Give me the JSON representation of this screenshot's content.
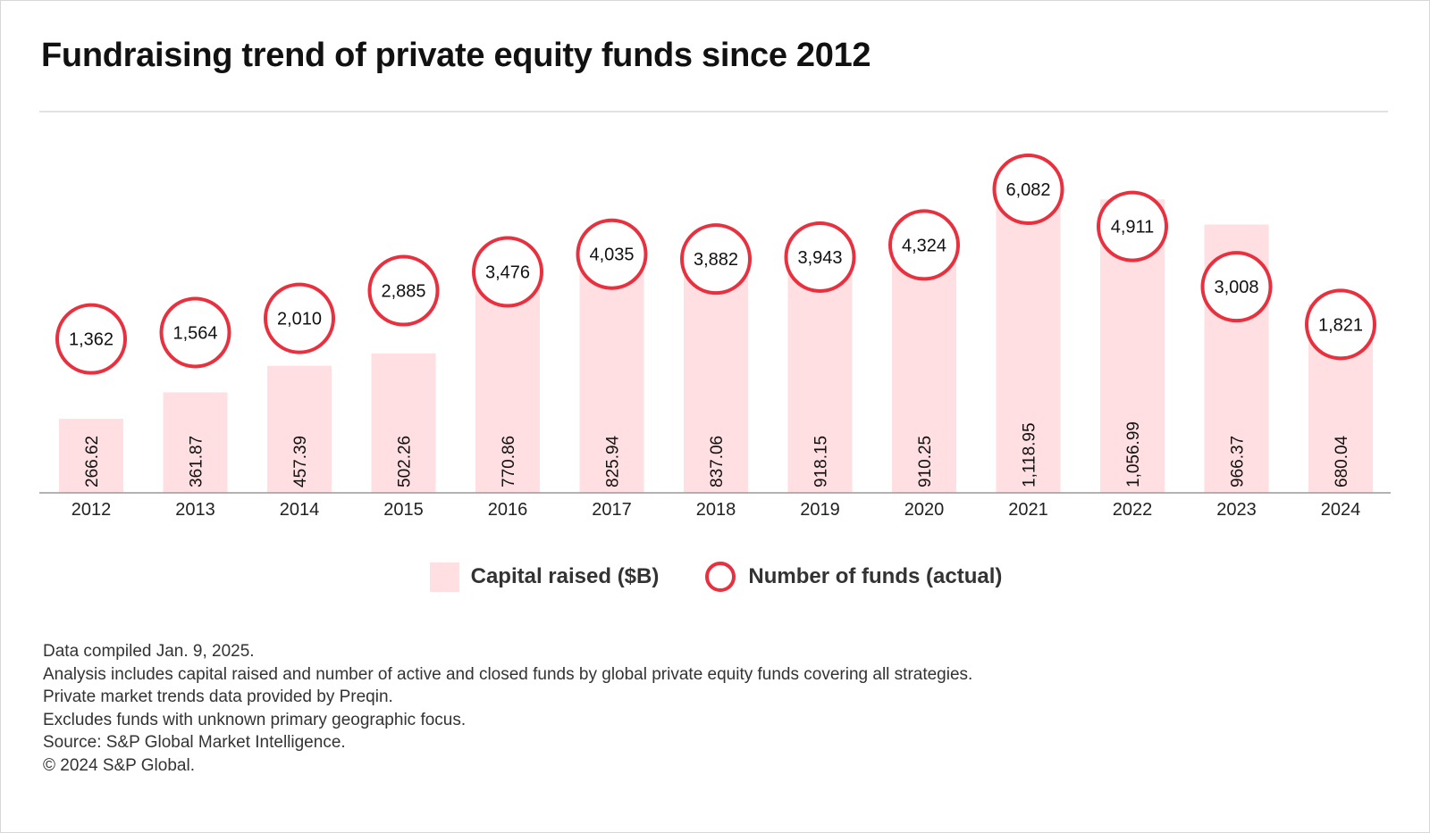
{
  "title": "Fundraising trend of private equity funds since 2012",
  "colors": {
    "bar": "#ffdfe1",
    "circle_stroke": "#e8303e",
    "text": "#111111",
    "axis": "#9a9a9a"
  },
  "legend": {
    "bar_label": "Capital raised ($B)",
    "circle_label": "Number of funds (actual)"
  },
  "notes": [
    "Data compiled Jan. 9, 2025.",
    "Analysis includes capital raised and number of active and closed funds by global private equity funds covering all strategies.",
    "Private market trends data provided by Preqin.",
    "Excludes funds with unknown primary geographic focus.",
    "Source: S&P Global Market Intelligence.",
    "© 2024 S&P Global."
  ],
  "chart_data": {
    "type": "bar",
    "categories": [
      "2012",
      "2013",
      "2014",
      "2015",
      "2016",
      "2017",
      "2018",
      "2019",
      "2020",
      "2021",
      "2022",
      "2023",
      "2024"
    ],
    "series": [
      {
        "name": "Capital raised ($B)",
        "type": "bar",
        "values": [
          266.62,
          361.87,
          457.39,
          502.26,
          770.86,
          825.94,
          837.06,
          918.15,
          910.25,
          1118.95,
          1056.99,
          966.37,
          680.04
        ],
        "labels": [
          "266.62",
          "361.87",
          "457.39",
          "502.26",
          "770.86",
          "825.94",
          "837.06",
          "918.15",
          "910.25",
          "1,118.95",
          "1,056.99",
          "966.37",
          "680.04"
        ]
      },
      {
        "name": "Number of funds (actual)",
        "type": "circle-marker",
        "values": [
          1362,
          1564,
          2010,
          2885,
          3476,
          4035,
          3882,
          3943,
          4324,
          6082,
          4911,
          3008,
          1821
        ],
        "labels": [
          "1,362",
          "1,564",
          "2,010",
          "2,885",
          "3,476",
          "4,035",
          "3,882",
          "3,943",
          "4,324",
          "6,082",
          "4,911",
          "3,008",
          "1,821"
        ]
      }
    ],
    "legend_position": "bottom-center",
    "grid": false
  }
}
